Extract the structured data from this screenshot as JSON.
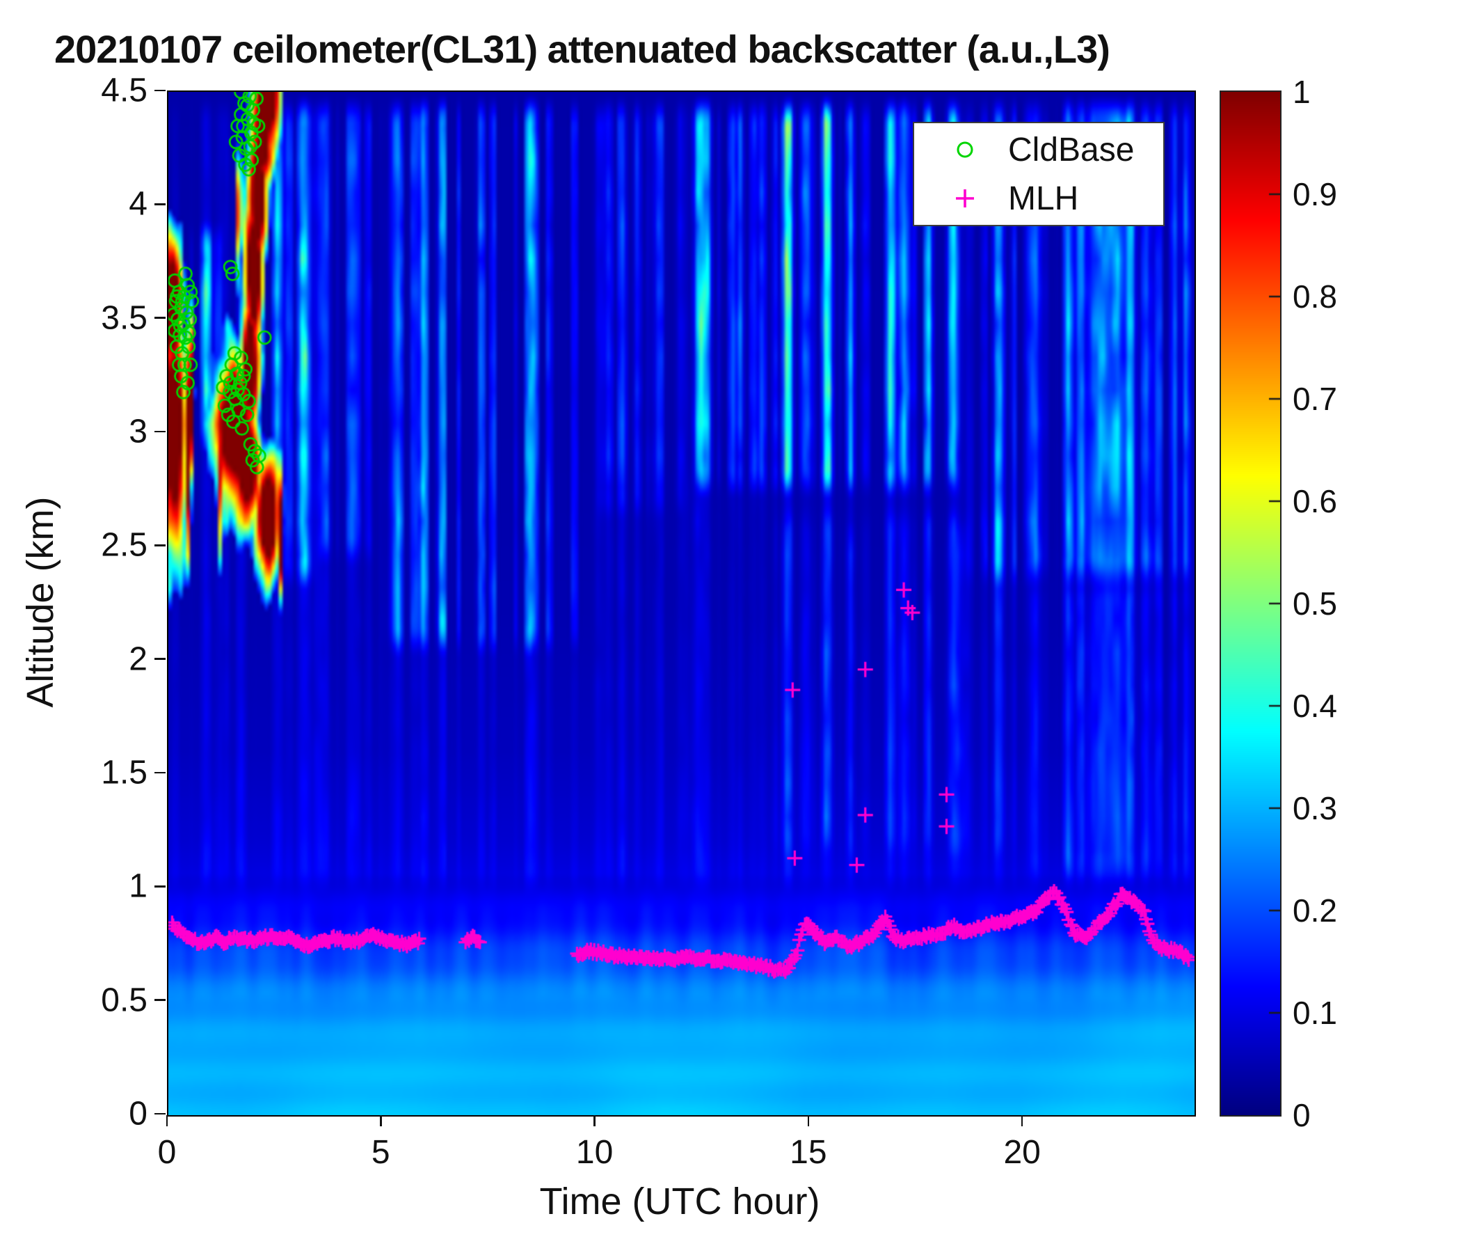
{
  "title": "20210107 ceilometer(CL31) attenuated backscatter (a.u.,L3)",
  "axes": {
    "xlabel": "Time (UTC hour)",
    "ylabel": "Altitude (km)",
    "xlim": [
      0,
      24
    ],
    "ylim": [
      0,
      4.5
    ],
    "xticks": [
      0,
      5,
      10,
      15,
      20
    ],
    "xtick_labels": [
      "0",
      "5",
      "10",
      "15",
      "20"
    ],
    "yticks": [
      0,
      0.5,
      1,
      1.5,
      2,
      2.5,
      3,
      3.5,
      4,
      4.5
    ],
    "ytick_labels": [
      "0",
      "0.5",
      "1",
      "1.5",
      "2",
      "2.5",
      "3",
      "3.5",
      "4",
      "4.5"
    ]
  },
  "colorbar": {
    "colormap": "jet",
    "clim": [
      0,
      1
    ],
    "tick_values": [
      0,
      0.1,
      0.2,
      0.3,
      0.4,
      0.5,
      0.6,
      0.7,
      0.8,
      0.9,
      1
    ],
    "tick_labels": [
      "0",
      "0.1",
      "0.2",
      "0.3",
      "0.4",
      "0.5",
      "0.6",
      "0.7",
      "0.8",
      "0.9",
      "1"
    ]
  },
  "legend": [
    {
      "label": "CldBase",
      "marker": "circle",
      "color": "#00d500"
    },
    {
      "label": "MLH",
      "marker": "plus",
      "color": "#ff00cf"
    }
  ],
  "colors": {
    "cldbase": "#00d500",
    "mlh": "#ff00cf",
    "axis": "#111111",
    "background": "#ffffff"
  },
  "chart_data": {
    "type": "heatmap",
    "x_units": "UTC hour",
    "y_units": "km",
    "value_units": "attenuated backscatter (a.u., normalized 0-1)",
    "background_profile": [
      [
        0,
        0.31
      ],
      [
        0.3,
        0.3
      ],
      [
        0.5,
        0.27
      ],
      [
        0.6,
        0.235
      ],
      [
        0.7,
        0.195
      ],
      [
        0.8,
        0.155
      ],
      [
        0.9,
        0.12
      ],
      [
        1.0,
        0.1
      ],
      [
        1.2,
        0.08
      ],
      [
        1.6,
        0.06
      ],
      [
        2.2,
        0.047
      ],
      [
        3.0,
        0.042
      ],
      [
        4.5,
        0.04
      ]
    ],
    "streak_bands": [
      {
        "t": [
          0,
          1.35
        ],
        "alt": [
          2.9,
          3.95
        ],
        "amp": 0.3
      },
      {
        "t": [
          2.25,
          3.5
        ],
        "alt": [
          2.3,
          4.5
        ],
        "amp": 0.26
      },
      {
        "t": [
          3.4,
          4.9
        ],
        "alt": [
          2.4,
          4.5
        ],
        "amp": 0.14
      },
      {
        "t": [
          5.0,
          9.9
        ],
        "alt": [
          2.0,
          4.5
        ],
        "amp": 0.22
      },
      {
        "t": [
          9.9,
          12.2
        ],
        "alt": [
          2.6,
          4.5
        ],
        "amp": 0.13
      },
      {
        "t": [
          12.2,
          18.6
        ],
        "alt": [
          2.7,
          4.5
        ],
        "amp": 0.3
      },
      {
        "t": [
          18.6,
          24
        ],
        "alt": [
          2.3,
          4.5
        ],
        "amp": 0.26
      },
      {
        "t": [
          14.0,
          20.0
        ],
        "alt": [
          1.1,
          2.7
        ],
        "amp": 0.07
      },
      {
        "t": [
          20.0,
          24
        ],
        "alt": [
          1.0,
          2.4
        ],
        "amp": 0.1
      },
      {
        "t": [
          0,
          24
        ],
        "alt": [
          0.95,
          4.5
        ],
        "amp": 0.05
      }
    ],
    "cloud_blobs": [
      {
        "t": 0.12,
        "a": 3.0,
        "rt": 0.3,
        "ra": 0.52
      },
      {
        "t": 0.1,
        "a": 3.55,
        "rt": 0.22,
        "ra": 0.3
      },
      {
        "t": 1.55,
        "a": 3.02,
        "rt": 0.45,
        "ra": 0.32
      },
      {
        "t": 1.85,
        "a": 2.85,
        "rt": 0.3,
        "ra": 0.25
      },
      {
        "t": 1.75,
        "a": 2.92,
        "rt": 0.24,
        "ra": 0.3
      },
      {
        "t": 1.9,
        "a": 3.3,
        "rt": 0.22,
        "ra": 0.3
      },
      {
        "t": 2.0,
        "a": 3.7,
        "rt": 0.22,
        "ra": 0.32
      },
      {
        "t": 2.1,
        "a": 4.05,
        "rt": 0.22,
        "ra": 0.32
      },
      {
        "t": 2.2,
        "a": 4.35,
        "rt": 0.22,
        "ra": 0.3
      },
      {
        "t": 2.35,
        "a": 4.5,
        "rt": 0.24,
        "ra": 0.28
      },
      {
        "t": 2.32,
        "a": 2.62,
        "rt": 0.28,
        "ra": 0.26
      },
      {
        "t": 0.45,
        "a": 2.95,
        "rt": 0.05,
        "ra": 0.45
      },
      {
        "t": 0.56,
        "a": 3.15,
        "rt": 0.04,
        "ra": 0.35
      },
      {
        "t": 1.18,
        "a": 2.85,
        "rt": 0.04,
        "ra": 0.4
      },
      {
        "t": 1.66,
        "a": 3.95,
        "rt": 0.04,
        "ra": 0.3
      },
      {
        "t": 2.62,
        "a": 2.55,
        "rt": 0.04,
        "ra": 0.25
      }
    ],
    "cldbase_points": [
      [
        0.12,
        3.52
      ],
      [
        0.15,
        3.45
      ],
      [
        0.18,
        3.58
      ],
      [
        0.2,
        3.38
      ],
      [
        0.22,
        3.5
      ],
      [
        0.25,
        3.62
      ],
      [
        0.27,
        3.43
      ],
      [
        0.3,
        3.55
      ],
      [
        0.32,
        3.35
      ],
      [
        0.35,
        3.48
      ],
      [
        0.37,
        3.6
      ],
      [
        0.4,
        3.42
      ],
      [
        0.42,
        3.53
      ],
      [
        0.45,
        3.65
      ],
      [
        0.47,
        3.38
      ],
      [
        0.5,
        3.5
      ],
      [
        0.52,
        3.3
      ],
      [
        0.55,
        3.58
      ],
      [
        0.3,
        3.25
      ],
      [
        0.35,
        3.18
      ],
      [
        0.25,
        3.3
      ],
      [
        0.45,
        3.22
      ],
      [
        0.15,
        3.67
      ],
      [
        0.4,
        3.7
      ],
      [
        0.2,
        3.6
      ],
      [
        0.28,
        3.47
      ],
      [
        0.33,
        3.58
      ],
      [
        0.48,
        3.44
      ],
      [
        0.52,
        3.62
      ],
      [
        0.38,
        3.3
      ],
      [
        1.28,
        3.2
      ],
      [
        1.32,
        3.12
      ],
      [
        1.36,
        3.25
      ],
      [
        1.4,
        3.08
      ],
      [
        1.44,
        3.18
      ],
      [
        1.48,
        3.3
      ],
      [
        1.52,
        3.05
      ],
      [
        1.56,
        3.15
      ],
      [
        1.6,
        3.26
      ],
      [
        1.64,
        3.1
      ],
      [
        1.68,
        3.22
      ],
      [
        1.72,
        3.02
      ],
      [
        1.76,
        3.17
      ],
      [
        1.8,
        3.28
      ],
      [
        1.84,
        3.08
      ],
      [
        1.88,
        3.14
      ],
      [
        1.55,
        3.35
      ],
      [
        1.7,
        3.33
      ],
      [
        1.45,
        3.22
      ],
      [
        1.62,
        3.19
      ],
      [
        1.76,
        3.25
      ],
      [
        1.92,
        2.95
      ],
      [
        1.97,
        2.88
      ],
      [
        2.02,
        2.92
      ],
      [
        2.07,
        2.85
      ],
      [
        2.12,
        2.9
      ],
      [
        1.58,
        4.28
      ],
      [
        1.62,
        4.35
      ],
      [
        1.66,
        4.22
      ],
      [
        1.7,
        4.4
      ],
      [
        1.74,
        4.3
      ],
      [
        1.78,
        4.45
      ],
      [
        1.82,
        4.25
      ],
      [
        1.86,
        4.38
      ],
      [
        1.9,
        4.48
      ],
      [
        1.94,
        4.32
      ],
      [
        1.98,
        4.42
      ],
      [
        2.02,
        4.28
      ],
      [
        2.06,
        4.47
      ],
      [
        1.95,
        4.2
      ],
      [
        1.8,
        4.18
      ],
      [
        2.1,
        4.35
      ],
      [
        1.7,
        4.5
      ],
      [
        1.88,
        4.16
      ],
      [
        1.75,
        4.35
      ],
      [
        1.92,
        4.26
      ],
      [
        2.0,
        4.36
      ],
      [
        1.85,
        4.44
      ],
      [
        1.45,
        3.73
      ],
      [
        2.25,
        3.42
      ],
      [
        1.5,
        3.7
      ]
    ],
    "mlh_segments": [
      [
        [
          0.08,
          0.84
        ],
        [
          0.25,
          0.81
        ],
        [
          0.45,
          0.78
        ],
        [
          0.7,
          0.76
        ],
        [
          1.0,
          0.77
        ],
        [
          1.15,
          0.8
        ],
        [
          1.3,
          0.76
        ],
        [
          1.55,
          0.78
        ],
        [
          1.8,
          0.77
        ],
        [
          2.1,
          0.77
        ],
        [
          2.4,
          0.79
        ],
        [
          2.7,
          0.78
        ],
        [
          3.0,
          0.77
        ],
        [
          3.3,
          0.74
        ],
        [
          3.6,
          0.76
        ],
        [
          3.9,
          0.78
        ],
        [
          4.2,
          0.76
        ],
        [
          4.5,
          0.77
        ],
        [
          4.75,
          0.8
        ],
        [
          5.0,
          0.78
        ],
        [
          5.3,
          0.76
        ],
        [
          5.6,
          0.75
        ],
        [
          5.9,
          0.77
        ]
      ],
      [
        [
          6.95,
          0.76
        ],
        [
          7.1,
          0.79
        ],
        [
          7.3,
          0.76
        ]
      ],
      [
        [
          9.55,
          0.71
        ],
        [
          9.9,
          0.72
        ],
        [
          10.2,
          0.71
        ],
        [
          10.6,
          0.7
        ],
        [
          11.0,
          0.69
        ],
        [
          11.5,
          0.69
        ],
        [
          12.0,
          0.69
        ],
        [
          12.5,
          0.69
        ],
        [
          13.0,
          0.68
        ],
        [
          13.4,
          0.67
        ],
        [
          13.8,
          0.66
        ],
        [
          14.2,
          0.64
        ],
        [
          14.45,
          0.63
        ],
        [
          14.7,
          0.72
        ],
        [
          14.9,
          0.86
        ],
        [
          15.1,
          0.81
        ],
        [
          15.35,
          0.76
        ],
        [
          15.6,
          0.78
        ],
        [
          15.9,
          0.74
        ],
        [
          16.2,
          0.76
        ],
        [
          16.5,
          0.8
        ],
        [
          16.8,
          0.87
        ],
        [
          16.95,
          0.78
        ],
        [
          17.2,
          0.77
        ],
        [
          17.5,
          0.78
        ],
        [
          17.8,
          0.79
        ],
        [
          18.1,
          0.8
        ],
        [
          18.35,
          0.83
        ],
        [
          18.6,
          0.8
        ],
        [
          18.9,
          0.82
        ],
        [
          19.2,
          0.84
        ],
        [
          19.5,
          0.85
        ],
        [
          19.9,
          0.87
        ],
        [
          20.3,
          0.9
        ],
        [
          20.7,
          0.99
        ],
        [
          20.95,
          0.92
        ],
        [
          21.2,
          0.8
        ],
        [
          21.45,
          0.78
        ],
        [
          21.7,
          0.83
        ],
        [
          22.0,
          0.89
        ],
        [
          22.3,
          0.97
        ],
        [
          22.55,
          0.94
        ],
        [
          22.8,
          0.9
        ],
        [
          23.05,
          0.76
        ],
        [
          23.3,
          0.73
        ],
        [
          23.6,
          0.72
        ],
        [
          23.9,
          0.68
        ]
      ]
    ],
    "mlh_scatter": [
      [
        14.6,
        1.87
      ],
      [
        14.65,
        1.13
      ],
      [
        16.1,
        1.1
      ],
      [
        16.3,
        1.32
      ],
      [
        16.3,
        1.96
      ],
      [
        17.2,
        2.31
      ],
      [
        17.3,
        2.23
      ],
      [
        17.4,
        2.21
      ],
      [
        18.2,
        1.41
      ],
      [
        18.2,
        1.27
      ]
    ]
  }
}
